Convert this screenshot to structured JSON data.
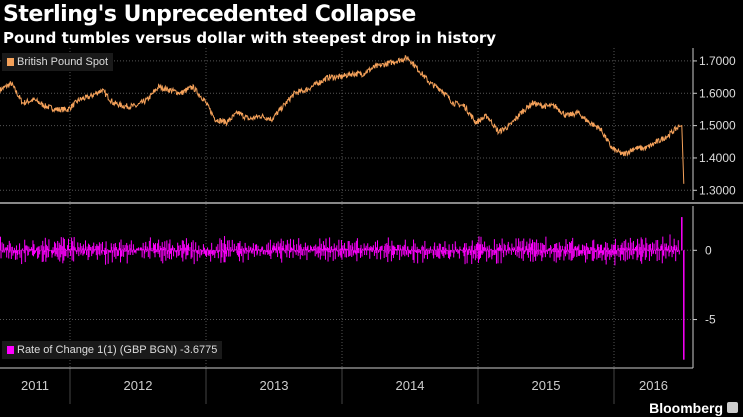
{
  "header": {
    "title": "Sterling's Unprecedented Collapse",
    "subtitle": "Pound tumbles versus dollar with steepest drop in history"
  },
  "brand": "Bloomberg",
  "colors": {
    "price": "#f4a15a",
    "roc": "#ff00ff",
    "grid": "#555",
    "separator": "#888"
  },
  "chart_data": [
    {
      "type": "line",
      "name": "British Pound Spot",
      "legend": "British Pound Spot",
      "x_start": "2011-07",
      "x_step": "month",
      "values": [
        1.61,
        1.63,
        1.57,
        1.58,
        1.56,
        1.55,
        1.55,
        1.58,
        1.59,
        1.61,
        1.57,
        1.56,
        1.56,
        1.58,
        1.62,
        1.61,
        1.6,
        1.62,
        1.58,
        1.52,
        1.51,
        1.54,
        1.52,
        1.53,
        1.52,
        1.56,
        1.6,
        1.61,
        1.63,
        1.65,
        1.65,
        1.66,
        1.66,
        1.68,
        1.69,
        1.7,
        1.71,
        1.67,
        1.63,
        1.61,
        1.57,
        1.56,
        1.51,
        1.53,
        1.48,
        1.5,
        1.54,
        1.57,
        1.56,
        1.56,
        1.53,
        1.54,
        1.51,
        1.49,
        1.43,
        1.41,
        1.43,
        1.43,
        1.45,
        1.47,
        1.5,
        1.32
      ],
      "ylim": [
        1.27,
        1.74
      ],
      "yticks": [
        "1.7000",
        "1.6000",
        "1.5000",
        "1.4000",
        "1.3000"
      ],
      "ytick_values": [
        1.7,
        1.6,
        1.5,
        1.4,
        1.3
      ]
    },
    {
      "type": "bar",
      "name": "Rate of Change 1(1) (GBP BGN)",
      "legend": "Rate of Change 1(1) (GBP BGN) -3.6775",
      "typical_range": [
        -1.2,
        1.2
      ],
      "final_values": [
        2.4,
        -7.9
      ],
      "ylim": [
        -8.5,
        3.2
      ],
      "yticks": [
        "0",
        "-5"
      ],
      "ytick_values": [
        0,
        -5
      ]
    }
  ],
  "xaxis": {
    "labels": [
      "2011",
      "2012",
      "2013",
      "2014",
      "2015",
      "2016"
    ]
  }
}
